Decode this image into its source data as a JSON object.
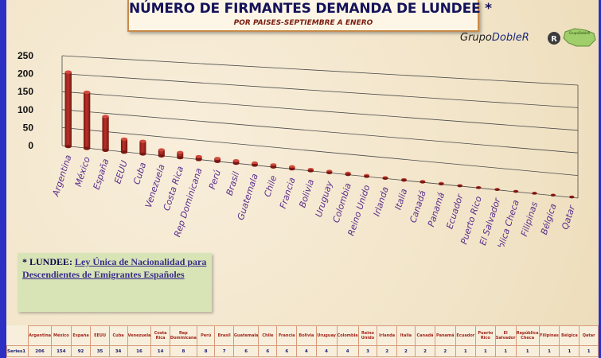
{
  "header": {
    "title": "NÚMERO DE FIRMANTES DEMANDA DE LUNDEE *",
    "subtitle": "POR PAISES-SEPTIEMBRE A ENERO",
    "brand_part1": "Grupo",
    "brand_part2": "DobleR",
    "logo_text": "GrupoDobleR"
  },
  "note": {
    "prefix": "* LUNDEE:",
    "text": "Ley Única de Nacionalidad para Descendientes de Emigrantes Españoles"
  },
  "colors": {
    "bar": "#b8322a",
    "bar_dark": "#7a1712",
    "label": "#5a2d8c",
    "background": "#f5ead2",
    "frame": "#2b2fc4"
  },
  "chart_data": {
    "type": "bar",
    "style": "3d-perspective",
    "title": "NÚMERO DE FIRMANTES DEMANDA DE LUNDEE *",
    "subtitle": "POR PAISES-SEPTIEMBRE A ENERO",
    "y_ticks": [
      "250",
      "200",
      "150",
      "100",
      "50",
      "0"
    ],
    "ylim": [
      0,
      250
    ],
    "grid": true,
    "categories": [
      "Argentina",
      "México",
      "España",
      "EEUU",
      "Cuba",
      "Venezuela",
      "Costa Rica",
      "Rep Dominicana",
      "Perú",
      "Brasil",
      "Guatemala",
      "Chile",
      "Francia",
      "Bolivia",
      "Uruguay",
      "Colombia",
      "Reino Unido",
      "Irlanda",
      "Italia",
      "Canadá",
      "Panamá",
      "Ecuador",
      "Puerto Rico",
      "El Salvador",
      "República Checa",
      "Filipinas",
      "Bélgica",
      "Qatar"
    ],
    "series": [
      {
        "name": "Series1",
        "values": [
          206,
          154,
          92,
          35,
          34,
          16,
          14,
          8,
          8,
          7,
          6,
          6,
          6,
          4,
          4,
          4,
          3,
          2,
          2,
          2,
          2,
          1,
          1,
          1,
          1,
          1,
          1,
          1
        ]
      }
    ],
    "table": {
      "series_label": "Series1",
      "headers": [
        "Argentina",
        "México",
        "España",
        "EEUU",
        "Cuba",
        "Venezuela",
        "Costa Rica",
        "Rep Dominicana",
        "Perú",
        "Brasil",
        "Guatemala",
        "Chile",
        "Francia",
        "Bolivia",
        "Uruguay",
        "Colombia",
        "Reino Unido",
        "Irlanda",
        "Italia",
        "Canadá",
        "Panamá",
        "Ecuador",
        "Puerto Rico",
        "El Salvador",
        "República Checa",
        "Filipinas",
        "Bélgica",
        "Qatar"
      ],
      "values": [
        "206",
        "154",
        "92",
        "35",
        "34",
        "16",
        "14",
        "8",
        "8",
        "7",
        "6",
        "6",
        "6",
        "4",
        "4",
        "4",
        "3",
        "2",
        "2",
        "2",
        "2",
        "1",
        "1",
        "1",
        "1",
        "1",
        "1",
        "1"
      ]
    }
  }
}
